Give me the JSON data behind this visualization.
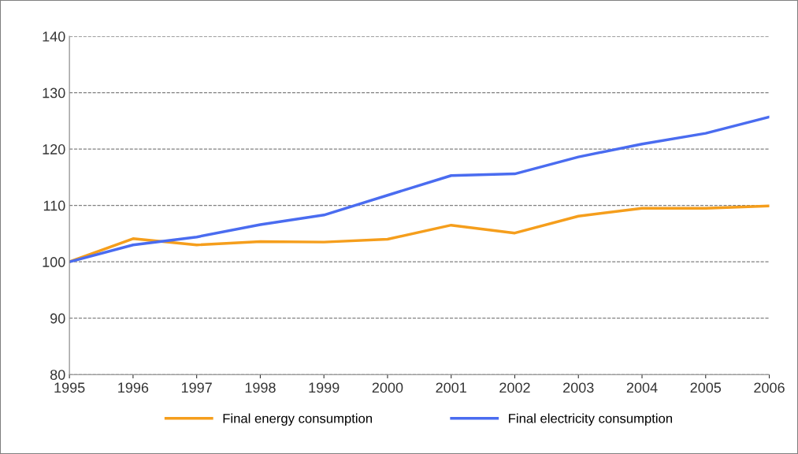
{
  "chart_data": {
    "type": "line",
    "x": [
      1995,
      1996,
      1997,
      1998,
      1999,
      2000,
      2001,
      2002,
      2003,
      2004,
      2005,
      2006
    ],
    "series": [
      {
        "name": "Final energy consumption",
        "color": "#f59e1c",
        "values": [
          100,
          104.1,
          103.0,
          103.6,
          103.5,
          104.0,
          106.5,
          105.1,
          108.1,
          109.5,
          109.5,
          109.9
        ]
      },
      {
        "name": "Final electricity consumption",
        "color": "#4a6cf0",
        "values": [
          100,
          103.0,
          104.4,
          106.6,
          108.3,
          111.8,
          115.3,
          115.6,
          118.6,
          120.9,
          122.8,
          125.7
        ]
      }
    ],
    "xlim": [
      1995,
      2006
    ],
    "xticks": [
      1995,
      1996,
      1997,
      1998,
      1999,
      2000,
      2001,
      2002,
      2003,
      2004,
      2005,
      2006
    ],
    "ylim": [
      80,
      140
    ],
    "yticks": [
      80,
      90,
      100,
      110,
      120,
      130,
      140
    ],
    "grid": "y",
    "legend": "bottom",
    "marker": "none",
    "line_style": "solid"
  }
}
